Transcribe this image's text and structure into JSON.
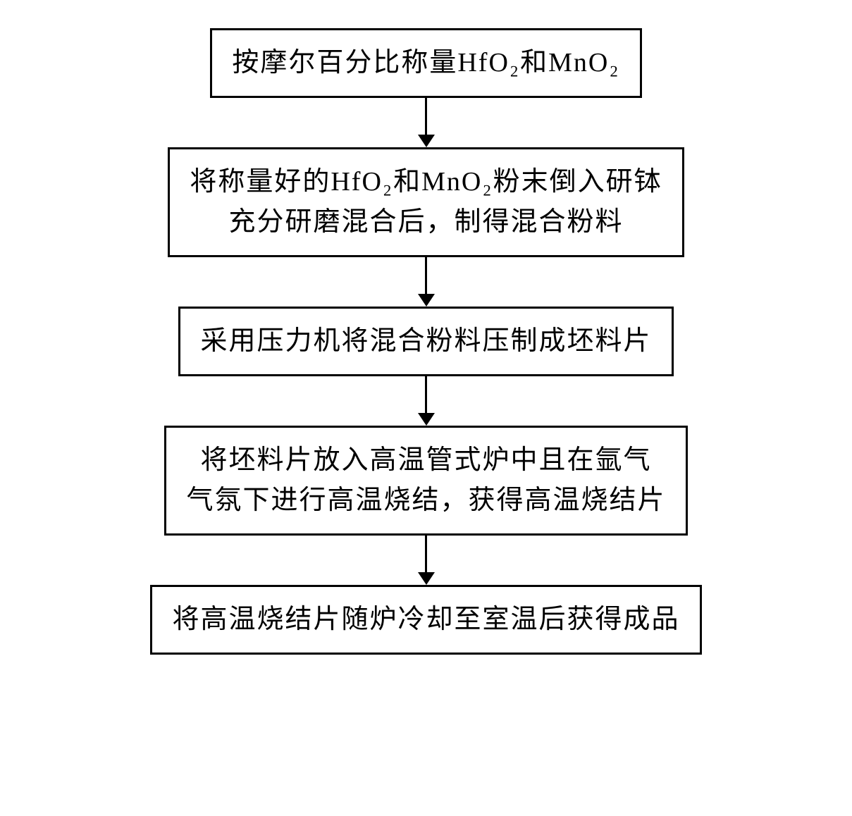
{
  "flowchart": {
    "type": "flowchart",
    "direction": "vertical",
    "border_color": "#000000",
    "border_width": 3,
    "background_color": "#ffffff",
    "text_color": "#000000",
    "font_family": "SimSun",
    "font_size_pt": 28,
    "arrow_color": "#000000",
    "arrow_line_width": 3,
    "arrow_head_size": 18,
    "arrow_gap_height": 70,
    "steps": [
      {
        "id": "step1",
        "lines": [
          "按摩尔百分比称量HfO₂和MnO₂"
        ],
        "width": "narrow"
      },
      {
        "id": "step2",
        "lines": [
          "将称量好的HfO₂和MnO₂粉末倒入研钵",
          "充分研磨混合后，制得混合粉料"
        ],
        "width": "wide"
      },
      {
        "id": "step3",
        "lines": [
          "采用压力机将混合粉料压制成坯料片"
        ],
        "width": "wide"
      },
      {
        "id": "step4",
        "lines": [
          "将坯料片放入高温管式炉中且在氩气",
          "气氛下进行高温烧结，获得高温烧结片"
        ],
        "width": "wide"
      },
      {
        "id": "step5",
        "lines": [
          "将高温烧结片随炉冷却至室温后获得成品"
        ],
        "width": "widest"
      }
    ]
  }
}
